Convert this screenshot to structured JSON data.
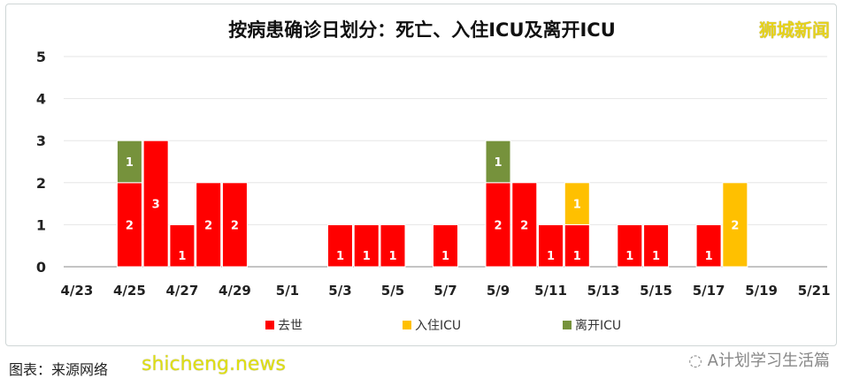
{
  "title": "按病患确诊日划分：死亡、入住ICU及离开ICU",
  "brand": "狮城新闻",
  "caption": "图表：来源网络",
  "watermark": "shicheng.news",
  "wechat": "A计划学习生活篇",
  "chart_data": {
    "type": "bar",
    "stacked": true,
    "title": "按病患确诊日划分：死亡、入住ICU及离开ICU",
    "x": [
      "4/23",
      "4/24",
      "4/25",
      "4/26",
      "4/27",
      "4/28",
      "4/29",
      "4/30",
      "5/1",
      "5/2",
      "5/3",
      "5/4",
      "5/5",
      "5/6",
      "5/7",
      "5/8",
      "5/9",
      "5/10",
      "5/11",
      "5/12",
      "5/13",
      "5/14",
      "5/15",
      "5/16",
      "5/17",
      "5/18",
      "5/19",
      "5/20",
      "5/21"
    ],
    "tick_labels": [
      "4/23",
      "4/25",
      "4/27",
      "4/29",
      "5/1",
      "5/3",
      "5/5",
      "5/7",
      "5/9",
      "5/11",
      "5/13",
      "5/15",
      "5/17",
      "5/19",
      "5/21"
    ],
    "ylim": [
      0,
      5
    ],
    "yticks": [
      "0",
      "1",
      "2",
      "3",
      "4",
      "5"
    ],
    "grid": true,
    "legend": "bottom",
    "series": [
      {
        "name": "去世",
        "color": "#ff0000",
        "values": [
          0,
          0,
          2,
          3,
          1,
          2,
          2,
          0,
          0,
          0,
          1,
          1,
          1,
          0,
          1,
          0,
          2,
          2,
          1,
          1,
          0,
          1,
          1,
          0,
          1,
          0,
          0,
          0,
          0
        ]
      },
      {
        "name": "入住ICU",
        "color": "#ffc000",
        "values": [
          0,
          0,
          0,
          0,
          0,
          0,
          0,
          0,
          0,
          0,
          0,
          0,
          0,
          0,
          0,
          0,
          0,
          0,
          0,
          1,
          0,
          0,
          0,
          0,
          0,
          2,
          0,
          0,
          0
        ]
      },
      {
        "name": "离开ICU",
        "color": "#76923c",
        "values": [
          0,
          0,
          1,
          0,
          0,
          0,
          0,
          0,
          0,
          0,
          0,
          0,
          0,
          0,
          0,
          0,
          1,
          0,
          0,
          0,
          0,
          0,
          0,
          0,
          0,
          0,
          0,
          0,
          0
        ]
      }
    ]
  }
}
